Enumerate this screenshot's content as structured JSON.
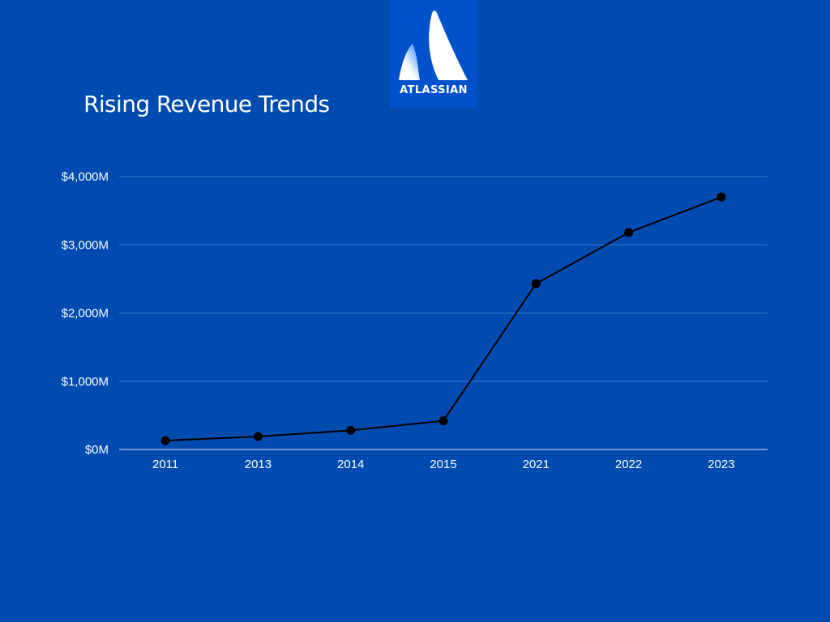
{
  "slide": {
    "background": "#004bb0"
  },
  "logo": {
    "wordmark": "ATLASSIAN",
    "tile_color": "#0052cc"
  },
  "colors": {
    "text": "#ffffff",
    "gridline": "#3f7fd0",
    "axis": "#a9c3e8",
    "series": "#000000"
  },
  "chart_data": {
    "type": "line",
    "title": "Rising Revenue Trends",
    "xlabel": "",
    "ylabel": "",
    "categories": [
      "2011",
      "2013",
      "2014",
      "2015",
      "2021",
      "2022",
      "2023"
    ],
    "series": [
      {
        "values": [
          130,
          190,
          280,
          420,
          2430,
          3180,
          3700
        ]
      }
    ],
    "ylim": [
      0,
      4000
    ],
    "y_ticks": [
      0,
      1000,
      2000,
      3000,
      4000
    ],
    "y_tick_labels": [
      "$0M",
      "$1,000M",
      "$2,000M",
      "$3,000M",
      "$4,000M"
    ],
    "grid": true,
    "legend": "none",
    "markers": "filled-circle"
  }
}
